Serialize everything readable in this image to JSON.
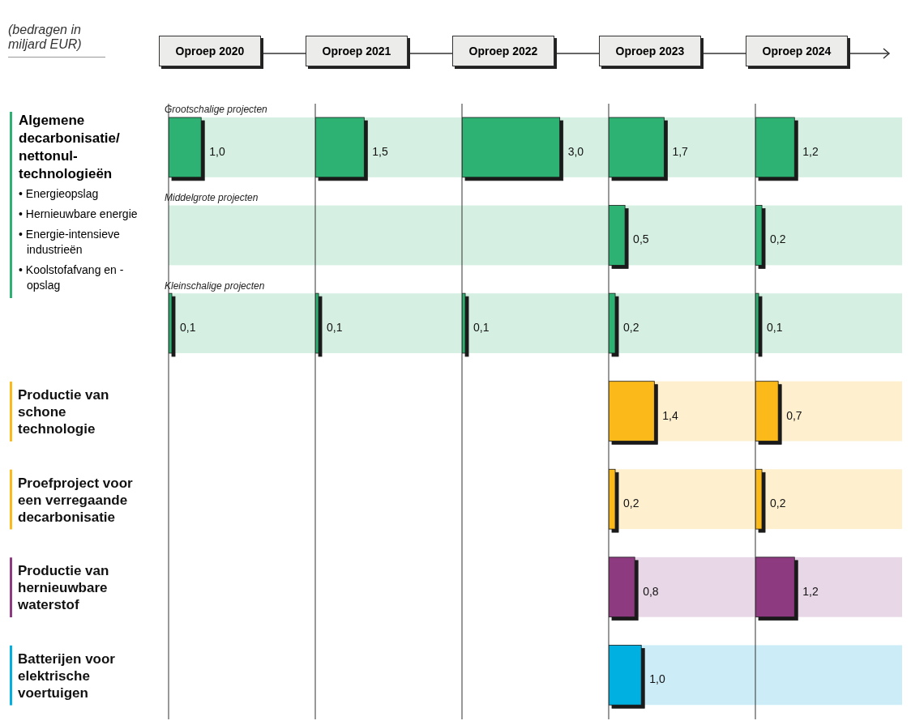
{
  "chart_data": [
    {
      "type": "bar",
      "orientation": "horizontal",
      "title": "Oproep 2020",
      "tick_labels": "y",
      "categories": [
        "Grootschalige projecten",
        "Middelgrote projecten",
        "Kleinschalige projecten",
        "Productie van schone technologie",
        "Proefproject voor een verregaande decarbonisatie",
        "Productie van hernieuwbare waterstof",
        "Batterijen voor elektrische voertuigen"
      ],
      "values": [
        1.0,
        null,
        0.1,
        null,
        null,
        null,
        null
      ],
      "value_labels": [
        "1,0",
        null,
        "0,1",
        null,
        null,
        null,
        null
      ],
      "colors": [
        "#2eb273",
        null,
        "#2eb273",
        null,
        null,
        null,
        null
      ],
      "bands": [
        {
          "axis": "y",
          "from": "Grootschalige projecten",
          "to": "Grootschalige projecten",
          "color": "#d5f0e3"
        },
        {
          "axis": "y",
          "from": "Middelgrote projecten",
          "to": "Middelgrote projecten",
          "color": "#d5f0e3"
        },
        {
          "axis": "y",
          "from": "Kleinschalige projecten",
          "to": "Kleinschalige projecten",
          "color": "#d5f0e3"
        }
      ],
      "annotations": [
        "(bedragen in miljard EUR)",
        "Algemene decarbonisatie/ nettonul-technologieën",
        "• Energieopslag",
        "• Hernieuwbare energie",
        "• Energie-intensieve industrieën",
        "• Koolstofafvang en -opslag"
      ]
    },
    {
      "type": "bar",
      "orientation": "horizontal",
      "title": "Oproep 2021",
      "tick_labels": false,
      "categories": [
        "Grootschalige projecten",
        "Middelgrote projecten",
        "Kleinschalige projecten",
        "Productie van schone technologie",
        "Proefproject voor een verregaande decarbonisatie",
        "Productie van hernieuwbare waterstof",
        "Batterijen voor elektrische voertuigen"
      ],
      "values": [
        1.5,
        null,
        0.1,
        null,
        null,
        null,
        null
      ],
      "value_labels": [
        "1,5",
        null,
        "0,1",
        null,
        null,
        null,
        null
      ],
      "colors": [
        "#2eb273",
        null,
        "#2eb273",
        null,
        null,
        null,
        null
      ],
      "bands": [
        {
          "axis": "y",
          "from": "Grootschalige projecten",
          "to": "Grootschalige projecten",
          "color": "#d5f0e3"
        },
        {
          "axis": "y",
          "from": "Middelgrote projecten",
          "to": "Middelgrote projecten",
          "color": "#d5f0e3"
        },
        {
          "axis": "y",
          "from": "Kleinschalige projecten",
          "to": "Kleinschalige projecten",
          "color": "#d5f0e3"
        }
      ]
    },
    {
      "type": "bar",
      "orientation": "horizontal",
      "title": "Oproep 2022",
      "tick_labels": false,
      "categories": [
        "Grootschalige projecten",
        "Middelgrote projecten",
        "Kleinschalige projecten",
        "Productie van schone technologie",
        "Proefproject voor een verregaande decarbonisatie",
        "Productie van hernieuwbare waterstof",
        "Batterijen voor elektrische voertuigen"
      ],
      "values": [
        3.0,
        null,
        0.1,
        null,
        null,
        null,
        null
      ],
      "value_labels": [
        "3,0",
        null,
        "0,1",
        null,
        null,
        null,
        null
      ],
      "colors": [
        "#2eb273",
        null,
        "#2eb273",
        null,
        null,
        null,
        null
      ],
      "bands": [
        {
          "axis": "y",
          "from": "Grootschalige projecten",
          "to": "Grootschalige projecten",
          "color": "#d5f0e3"
        },
        {
          "axis": "y",
          "from": "Middelgrote projecten",
          "to": "Middelgrote projecten",
          "color": "#d5f0e3"
        },
        {
          "axis": "y",
          "from": "Kleinschalige projecten",
          "to": "Kleinschalige projecten",
          "color": "#d5f0e3"
        }
      ]
    },
    {
      "type": "bar",
      "orientation": "horizontal",
      "title": "Oproep 2023",
      "tick_labels": false,
      "categories": [
        "Grootschalige projecten",
        "Middelgrote projecten",
        "Kleinschalige projecten",
        "Productie van schone technologie",
        "Proefproject voor een verregaande decarbonisatie",
        "Productie van hernieuwbare waterstof",
        "Batterijen voor elektrische voertuigen"
      ],
      "values": [
        1.7,
        0.5,
        0.2,
        1.4,
        0.2,
        0.8,
        1.0
      ],
      "value_labels": [
        "1,7",
        "0,5",
        "0,2",
        "1,4",
        "0,2",
        "0,8",
        "1,0"
      ],
      "colors": [
        "#2eb273",
        "#2eb273",
        "#2eb273",
        "#fbba1a",
        "#fbba1a",
        "#8e3a80",
        "#00b0e0"
      ],
      "bands": [
        {
          "axis": "y",
          "from": "Grootschalige projecten",
          "to": "Grootschalige projecten",
          "color": "#d5f0e3"
        },
        {
          "axis": "y",
          "from": "Middelgrote projecten",
          "to": "Middelgrote projecten",
          "color": "#d5f0e3"
        },
        {
          "axis": "y",
          "from": "Kleinschalige projecten",
          "to": "Kleinschalige projecten",
          "color": "#d5f0e3"
        },
        {
          "axis": "y",
          "from": "Productie van schone technologie",
          "to": "Productie van schone technologie",
          "color": "#feefcf"
        },
        {
          "axis": "y",
          "from": "Proefproject voor een verregaande decarbonisatie",
          "to": "Proefproject voor een verregaande decarbonisatie",
          "color": "#feefcf"
        },
        {
          "axis": "y",
          "from": "Productie van hernieuwbare waterstof",
          "to": "Productie van hernieuwbare waterstof",
          "color": "#e8d7e6"
        },
        {
          "axis": "y",
          "from": "Batterijen voor elektrische voertuigen",
          "to": "Batterijen voor elektrische voertuigen",
          "color": "#ccedf7"
        }
      ]
    },
    {
      "type": "bar",
      "orientation": "horizontal",
      "title": "Oproep 2024",
      "tick_labels": false,
      "categories": [
        "Grootschalige projecten",
        "Middelgrote projecten",
        "Kleinschalige projecten",
        "Productie van schone technologie",
        "Proefproject voor een verregaande decarbonisatie",
        "Productie van hernieuwbare waterstof",
        "Batterijen voor elektrische voertuigen"
      ],
      "values": [
        1.2,
        0.2,
        0.1,
        0.7,
        0.2,
        1.2,
        null
      ],
      "value_labels": [
        "1,2",
        "0,2",
        "0,1",
        "0,7",
        "0,2",
        "1,2",
        null
      ],
      "colors": [
        "#2eb273",
        "#2eb273",
        "#2eb273",
        "#fbba1a",
        "#fbba1a",
        "#8e3a80",
        null
      ],
      "bands": [
        {
          "axis": "y",
          "from": "Grootschalige projecten",
          "to": "Grootschalige projecten",
          "color": "#d5f0e3"
        },
        {
          "axis": "y",
          "from": "Middelgrote projecten",
          "to": "Middelgrote projecten",
          "color": "#d5f0e3"
        },
        {
          "axis": "y",
          "from": "Kleinschalige projecten",
          "to": "Kleinschalige projecten",
          "color": "#d5f0e3"
        },
        {
          "axis": "y",
          "from": "Productie van schone technologie",
          "to": "Productie van schone technologie",
          "color": "#feefcf"
        },
        {
          "axis": "y",
          "from": "Proefproject voor een verregaande decarbonisatie",
          "to": "Proefproject voor een verregaande decarbonisatie",
          "color": "#feefcf"
        },
        {
          "axis": "y",
          "from": "Productie van hernieuwbare waterstof",
          "to": "Productie van hernieuwbare waterstof",
          "color": "#e8d7e6"
        },
        {
          "axis": "y",
          "from": "Batterijen voor elektrische voertuigen",
          "to": "Batterijen voor elektrische voertuigen",
          "color": "#ccedf7"
        }
      ]
    }
  ]
}
